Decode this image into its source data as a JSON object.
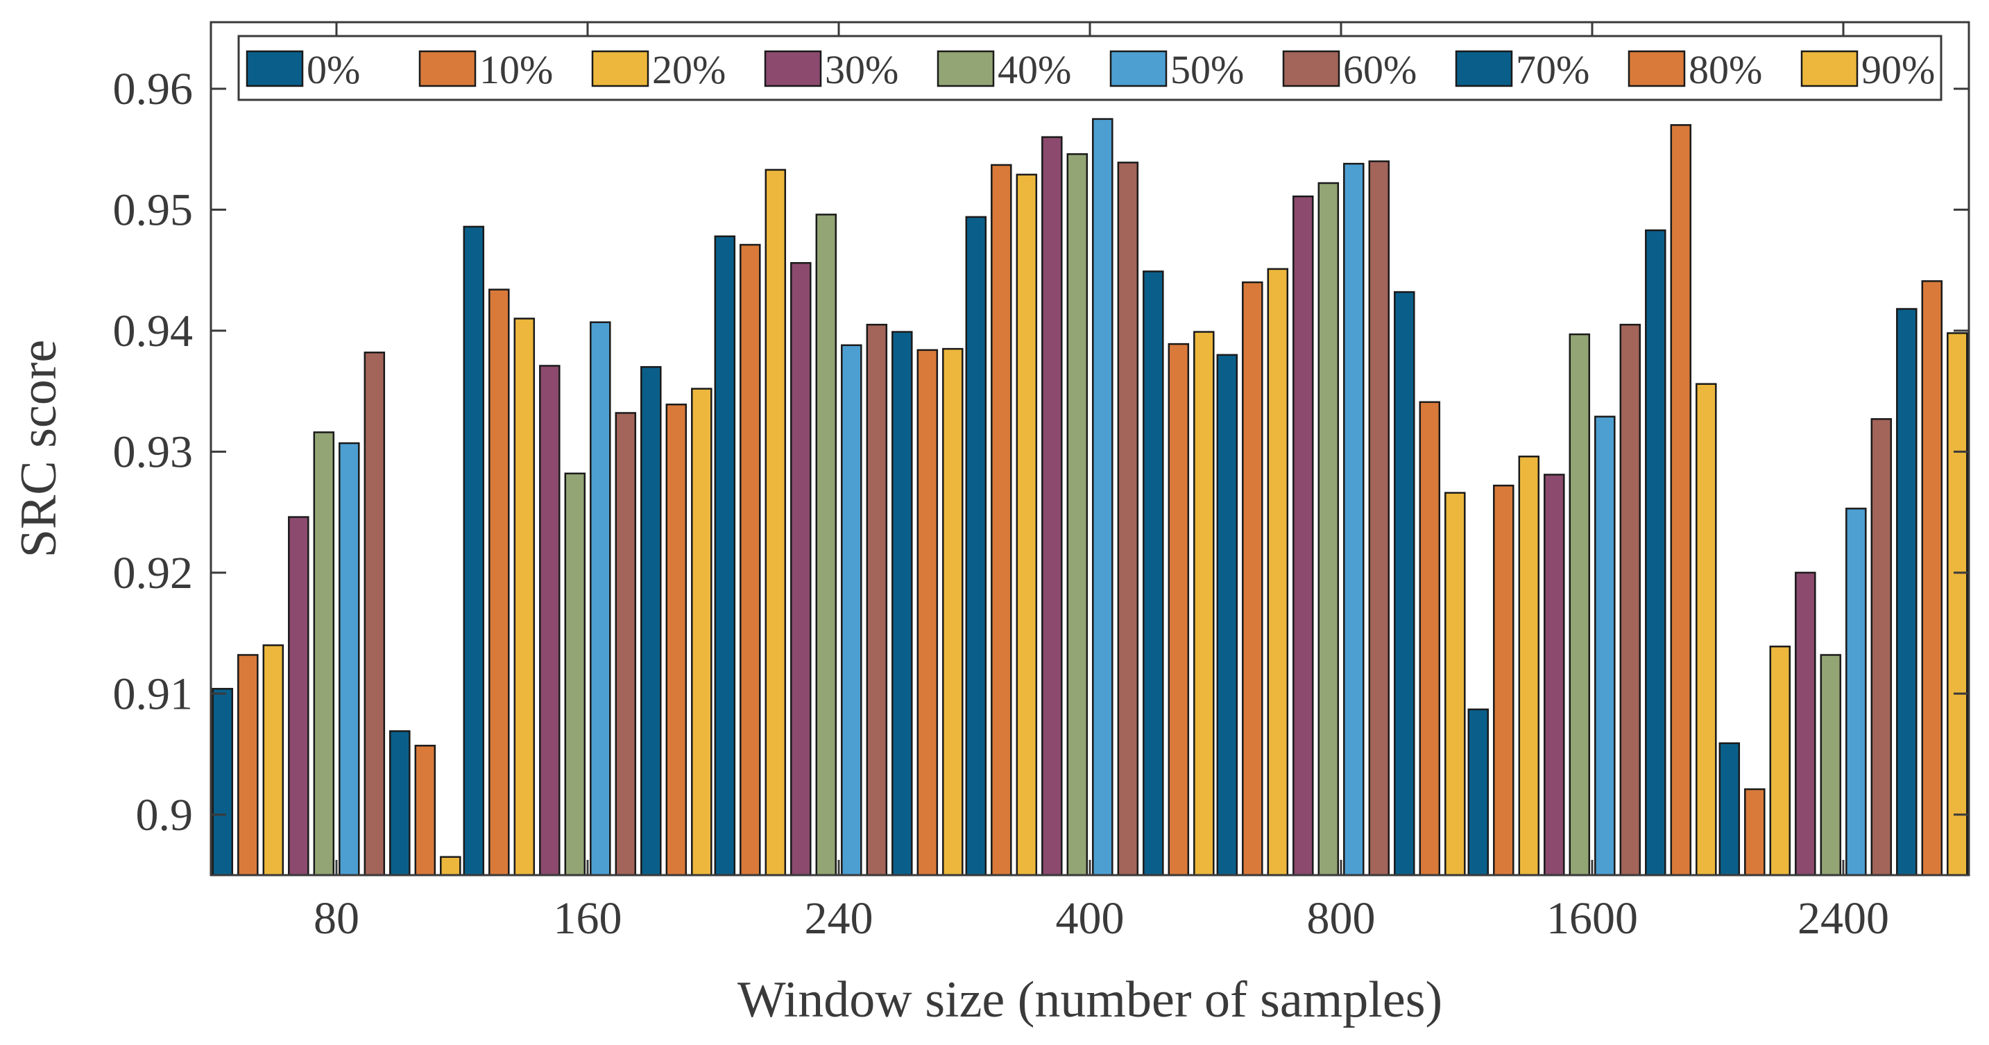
{
  "chart_data": {
    "type": "bar",
    "title": "",
    "xlabel": "Window size (number of samples)",
    "ylabel": "SRC score",
    "ylim": [
      0.895,
      0.9655
    ],
    "yticks": [
      0.9,
      0.91,
      0.92,
      0.93,
      0.94,
      0.95,
      0.96
    ],
    "ytick_labels": [
      "0.9",
      "0.91",
      "0.92",
      "0.93",
      "0.94",
      "0.95",
      "0.96"
    ],
    "categories": [
      "80",
      "160",
      "240",
      "400",
      "800",
      "1600",
      "2400"
    ],
    "legend_position": "top",
    "series": [
      {
        "name": "0%",
        "color": "#0a5f8a",
        "values": [
          0.9104,
          0.9486,
          0.9478,
          0.9494,
          0.938,
          0.9087,
          0.9059
        ]
      },
      {
        "name": "10%",
        "color": "#d97a3a",
        "values": [
          0.9132,
          0.9434,
          0.9471,
          0.9537,
          0.944,
          0.9272,
          0.9021
        ]
      },
      {
        "name": "20%",
        "color": "#ecb73c",
        "values": [
          0.914,
          0.941,
          0.9533,
          0.9529,
          0.9451,
          0.9296,
          0.9139
        ]
      },
      {
        "name": "30%",
        "color": "#8b4a6e",
        "values": [
          0.9246,
          0.9371,
          0.9456,
          0.956,
          0.9511,
          0.9281,
          0.92
        ]
      },
      {
        "name": "40%",
        "color": "#93a574",
        "values": [
          0.9316,
          0.9282,
          0.9496,
          0.9546,
          0.9522,
          0.9397,
          0.9132
        ]
      },
      {
        "name": "50%",
        "color": "#4d9fd1",
        "values": [
          0.9307,
          0.9407,
          0.9388,
          0.9575,
          0.9538,
          0.9329,
          0.9253
        ]
      },
      {
        "name": "60%",
        "color": "#a3645a",
        "values": [
          0.9382,
          0.9332,
          0.9405,
          0.9539,
          0.954,
          0.9405,
          0.9327
        ]
      },
      {
        "name": "70%",
        "color": "#0a5f8a",
        "values": [
          0.9069,
          0.937,
          0.9399,
          0.9449,
          0.9432,
          0.9483,
          0.9418
        ]
      },
      {
        "name": "80%",
        "color": "#d97a3a",
        "values": [
          0.9057,
          0.9339,
          0.9384,
          0.9389,
          0.9341,
          0.957,
          0.9441
        ]
      },
      {
        "name": "90%",
        "color": "#ecb73c",
        "values": [
          0.8965,
          0.9352,
          0.9385,
          0.9399,
          0.9266,
          0.9356,
          0.9398
        ]
      }
    ]
  }
}
